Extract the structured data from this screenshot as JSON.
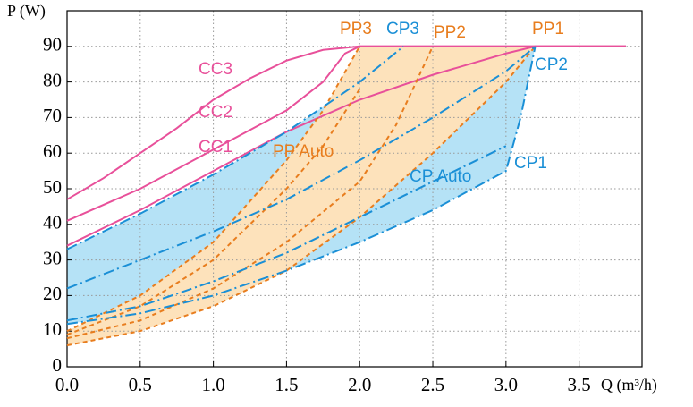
{
  "chart_data": {
    "type": "line",
    "y_label": "P (W)",
    "x_label": "Q (m³/h)",
    "xlim": [
      0,
      3.93
    ],
    "ylim": [
      0,
      100
    ],
    "xticks": [
      {
        "value": 0,
        "label": "0.0"
      },
      0.5,
      {
        "value": 1,
        "label": "1.0"
      },
      1.5,
      {
        "value": 2,
        "label": "2.0"
      },
      2.5,
      {
        "value": 3,
        "label": "3.0"
      },
      3.5
    ],
    "yticks": [
      0,
      10,
      20,
      30,
      40,
      50,
      60,
      70,
      80,
      90
    ],
    "grid": true,
    "fills": [
      {
        "color": "#b5e2f6",
        "upper": "CP3",
        "lower": "CP1"
      },
      {
        "color": "#fde2bb",
        "upper": "PP3",
        "lower": "PP1"
      }
    ],
    "series": [
      {
        "name": "CC1",
        "color": "#e8509a",
        "style": "solid",
        "x": [
          0,
          0.5,
          1.0,
          1.5,
          2.0,
          2.5,
          3.0,
          3.2,
          3.82
        ],
        "values": [
          34,
          44,
          55,
          66,
          75,
          82,
          88,
          90,
          90
        ]
      },
      {
        "name": "CC2",
        "color": "#e8509a",
        "style": "solid",
        "x": [
          0,
          0.5,
          1.0,
          1.5,
          1.75,
          1.9,
          2.0,
          3.82
        ],
        "values": [
          41,
          50,
          61,
          72,
          80,
          88,
          90,
          90
        ]
      },
      {
        "name": "CC3",
        "color": "#e8509a",
        "style": "solid",
        "x": [
          0,
          0.25,
          0.5,
          0.75,
          1.0,
          1.25,
          1.5,
          1.75,
          2.0,
          3.82
        ],
        "values": [
          47,
          53,
          60,
          67,
          75,
          81,
          86,
          89,
          90,
          90
        ]
      },
      {
        "name": "PP1",
        "color": "#e87d1e",
        "style": "dashed",
        "x": [
          0,
          0.5,
          1.0,
          1.5,
          2.0,
          2.5,
          3.0,
          3.2
        ],
        "values": [
          6,
          10,
          17,
          27,
          42,
          60,
          80,
          90
        ]
      },
      {
        "name": "PP2",
        "color": "#e87d1e",
        "style": "dashed",
        "x": [
          0,
          0.5,
          1.0,
          1.5,
          2.0,
          2.25,
          2.5
        ],
        "values": [
          8,
          13,
          22,
          35,
          52,
          68,
          90
        ]
      },
      {
        "name": "PP3",
        "color": "#e87d1e",
        "style": "dashed",
        "x": [
          0,
          0.5,
          1.0,
          1.5,
          1.75,
          2.0
        ],
        "values": [
          10,
          20,
          35,
          58,
          72,
          90
        ]
      },
      {
        "name": "PP Auto",
        "color": "#e87d1e",
        "style": "dashed",
        "x": [
          0,
          0.5,
          1.0,
          1.5,
          1.75,
          2.0
        ],
        "values": [
          9,
          17,
          30,
          50,
          62,
          78
        ]
      },
      {
        "name": "CP1",
        "color": "#1a8fd6",
        "style": "dashdot",
        "x": [
          0,
          0.5,
          1.0,
          1.5,
          2.0,
          2.5,
          3.0,
          3.1,
          3.2
        ],
        "values": [
          12,
          15,
          20,
          27,
          35,
          44,
          55,
          70,
          90
        ]
      },
      {
        "name": "CP2",
        "color": "#1a8fd6",
        "style": "dashdot",
        "x": [
          0,
          0.5,
          1.0,
          1.5,
          2.0,
          2.5,
          3.0,
          3.2
        ],
        "values": [
          22,
          30,
          38,
          47,
          58,
          70,
          83,
          90
        ]
      },
      {
        "name": "CP3",
        "color": "#1a8fd6",
        "style": "dashdot",
        "x": [
          0,
          0.5,
          1.0,
          1.5,
          2.0,
          2.3
        ],
        "values": [
          33,
          43,
          54,
          66,
          80,
          90
        ]
      },
      {
        "name": "CP Auto",
        "color": "#1a8fd6",
        "style": "dashdot",
        "x": [
          0,
          0.5,
          1.0,
          1.5,
          2.0,
          2.5,
          3.0
        ],
        "values": [
          13,
          17,
          24,
          32,
          42,
          52,
          62
        ]
      }
    ]
  }
}
